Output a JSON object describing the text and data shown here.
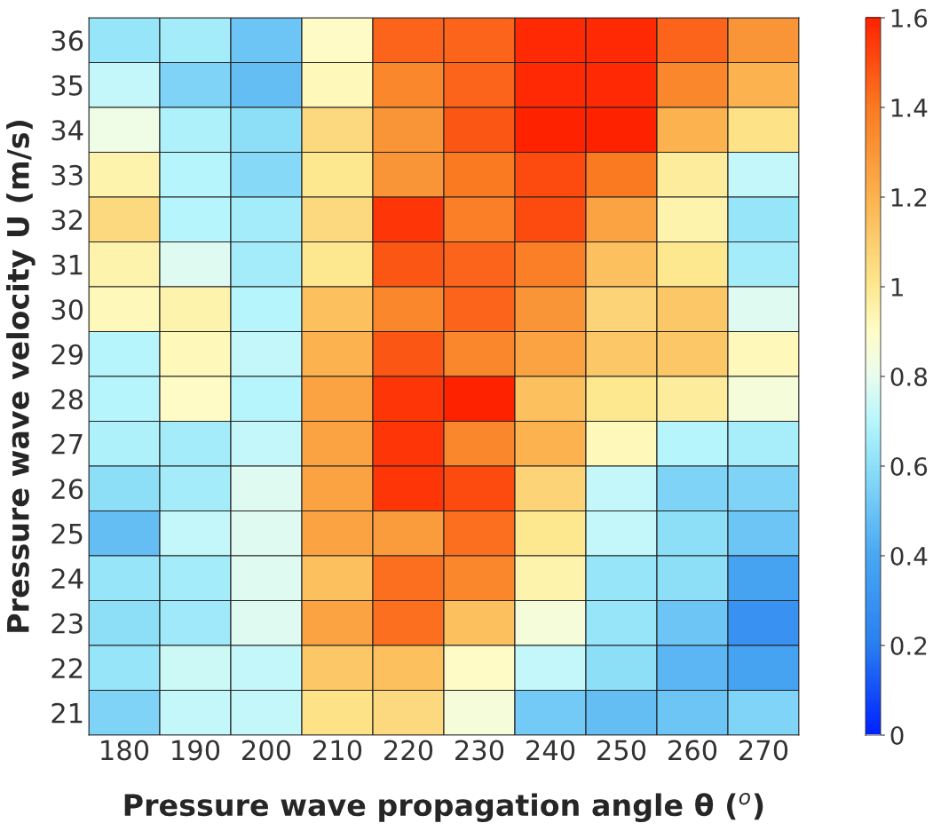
{
  "chart_data": {
    "type": "heatmap",
    "xlabel": "Pressure wave propagation angle θ ($^{o}$)",
    "ylabel": "Pressure wave velocity U (m/s)",
    "categories": [
      "180",
      "190",
      "200",
      "210",
      "220",
      "230",
      "240",
      "250",
      "260",
      "270"
    ],
    "y_categories": [
      "36",
      "35",
      "34",
      "33",
      "32",
      "31",
      "30",
      "29",
      "28",
      "27",
      "26",
      "25",
      "24",
      "23",
      "22",
      "21"
    ],
    "cells": [
      [
        0.62,
        0.65,
        0.5,
        0.9,
        1.45,
        1.45,
        1.58,
        1.58,
        1.45,
        1.3
      ],
      [
        0.72,
        0.55,
        0.48,
        0.92,
        1.35,
        1.45,
        1.58,
        1.58,
        1.35,
        1.2
      ],
      [
        0.82,
        0.68,
        0.6,
        1.05,
        1.3,
        1.48,
        1.6,
        1.6,
        1.2,
        1.02
      ],
      [
        0.95,
        0.7,
        0.58,
        1.0,
        1.3,
        1.4,
        1.5,
        1.4,
        0.98,
        0.72
      ],
      [
        1.05,
        0.7,
        0.65,
        1.05,
        1.55,
        1.38,
        1.5,
        1.25,
        0.95,
        0.62
      ],
      [
        0.95,
        0.78,
        0.65,
        1.0,
        1.48,
        1.45,
        1.38,
        1.15,
        1.0,
        0.65
      ],
      [
        0.92,
        0.95,
        0.7,
        1.15,
        1.35,
        1.45,
        1.3,
        1.08,
        1.12,
        0.78
      ],
      [
        0.7,
        0.92,
        0.72,
        1.2,
        1.48,
        1.35,
        1.25,
        1.12,
        1.12,
        0.92
      ],
      [
        0.7,
        0.9,
        0.7,
        1.25,
        1.55,
        1.6,
        1.15,
        1.0,
        0.98,
        0.85
      ],
      [
        0.68,
        0.65,
        0.72,
        1.25,
        1.55,
        1.35,
        1.2,
        0.92,
        0.7,
        0.66
      ],
      [
        0.6,
        0.65,
        0.78,
        1.25,
        1.55,
        1.5,
        1.08,
        0.72,
        0.55,
        0.55
      ],
      [
        0.48,
        0.72,
        0.78,
        1.25,
        1.28,
        1.42,
        1.0,
        0.72,
        0.6,
        0.5
      ],
      [
        0.62,
        0.65,
        0.78,
        1.15,
        1.42,
        1.35,
        0.95,
        0.62,
        0.6,
        0.38
      ],
      [
        0.6,
        0.64,
        0.78,
        1.25,
        1.42,
        1.15,
        0.85,
        0.62,
        0.5,
        0.3
      ],
      [
        0.62,
        0.74,
        0.72,
        1.12,
        1.15,
        0.9,
        0.72,
        0.6,
        0.45,
        0.38
      ],
      [
        0.55,
        0.72,
        0.72,
        1.02,
        1.05,
        0.85,
        0.52,
        0.48,
        0.5,
        0.56
      ]
    ],
    "clim": [
      0,
      1.6
    ],
    "cticks": [
      0,
      0.2,
      0.4,
      0.6,
      0.8,
      1,
      1.2,
      1.4,
      1.6
    ]
  }
}
